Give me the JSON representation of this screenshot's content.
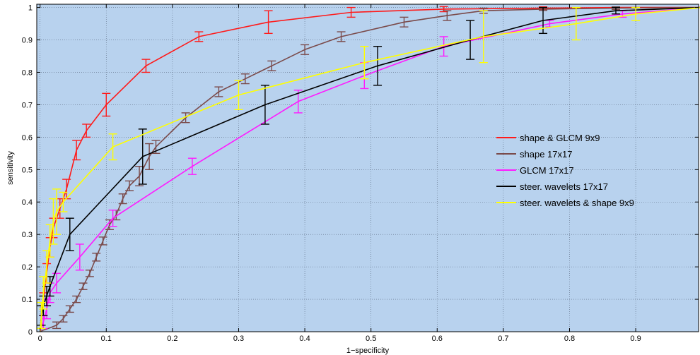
{
  "chart_data": {
    "type": "line",
    "title": "",
    "xlabel": "1−specificity",
    "ylabel": "sensitivity",
    "xlim": [
      -0.005,
      0.995
    ],
    "ylim": [
      0,
      1.01
    ],
    "x_ticks": [
      0,
      0.1,
      0.2,
      0.3,
      0.4,
      0.5,
      0.6,
      0.7,
      0.8,
      0.9
    ],
    "x_tick_labels": [
      "0",
      "0.1",
      "0.2",
      "0.3",
      "0.4",
      "0.5",
      "0.6",
      "0.7",
      "0.8",
      "0.9"
    ],
    "y_ticks": [
      0,
      0.1,
      0.2,
      0.3,
      0.4,
      0.5,
      0.6,
      0.7,
      0.8,
      0.9,
      1
    ],
    "y_tick_labels": [
      "0",
      "0.1",
      "0.2",
      "0.3",
      "0.4",
      "0.5",
      "0.6",
      "0.7",
      "0.8",
      "0.9",
      "1"
    ],
    "grid": true,
    "background_color": "#b8d2ee",
    "legend_position": "center-right",
    "series": [
      {
        "name": "shape & GLCM 9x9",
        "color": "#ff1a1a",
        "x": [
          0,
          0.005,
          0.01,
          0.015,
          0.02,
          0.03,
          0.04,
          0.055,
          0.07,
          0.1,
          0.16,
          0.24,
          0.345,
          0.47,
          0.61,
          0.76,
          0.88,
          1.0
        ],
        "y": [
          0,
          0.1,
          0.18,
          0.26,
          0.32,
          0.38,
          0.44,
          0.56,
          0.62,
          0.7,
          0.82,
          0.91,
          0.955,
          0.985,
          0.995,
          0.998,
          1.0,
          1.0
        ],
        "err": [
          0,
          0.02,
          0.03,
          0.03,
          0.03,
          0.03,
          0.03,
          0.03,
          0.02,
          0.035,
          0.02,
          0.015,
          0.035,
          0.015,
          0.008,
          0.004,
          0,
          0
        ]
      },
      {
        "name": "shape 17x17",
        "color": "#7a4a4a",
        "x": [
          0,
          0.005,
          0.015,
          0.025,
          0.035,
          0.045,
          0.055,
          0.065,
          0.075,
          0.085,
          0.095,
          0.105,
          0.115,
          0.125,
          0.135,
          0.15,
          0.165,
          0.175,
          0.22,
          0.27,
          0.31,
          0.35,
          0.4,
          0.455,
          0.55,
          0.615,
          0.67,
          0.76,
          0.87,
          1.0
        ],
        "y": [
          0,
          0.005,
          0.012,
          0.02,
          0.04,
          0.07,
          0.1,
          0.14,
          0.18,
          0.23,
          0.28,
          0.33,
          0.36,
          0.41,
          0.45,
          0.48,
          0.54,
          0.57,
          0.66,
          0.74,
          0.78,
          0.82,
          0.87,
          0.91,
          0.955,
          0.975,
          0.99,
          0.995,
          0.998,
          1.0
        ],
        "err": [
          0,
          0,
          0,
          0.01,
          0.01,
          0.01,
          0.01,
          0.01,
          0.01,
          0.012,
          0.012,
          0.015,
          0.015,
          0.015,
          0.015,
          0.03,
          0.04,
          0.02,
          0.015,
          0.015,
          0.015,
          0.015,
          0.015,
          0.015,
          0.015,
          0.015,
          0.008,
          0.004,
          0.004,
          0
        ]
      },
      {
        "name": "GLCM 17x17",
        "color": "#ff1aff",
        "x": [
          0,
          0.005,
          0.01,
          0.015,
          0.025,
          0.06,
          0.11,
          0.23,
          0.39,
          0.49,
          0.61,
          0.77,
          0.88,
          1.0
        ],
        "y": [
          0,
          0.03,
          0.07,
          0.12,
          0.15,
          0.23,
          0.35,
          0.51,
          0.71,
          0.79,
          0.88,
          0.95,
          0.98,
          1.0
        ],
        "err": [
          0,
          0.02,
          0.03,
          0.03,
          0.03,
          0.04,
          0.025,
          0.025,
          0.035,
          0.04,
          0.03,
          0.01,
          0.01,
          0
        ]
      },
      {
        "name": "steer. wavelets 17x17",
        "color": "#000000",
        "x": [
          0,
          0.002,
          0.005,
          0.01,
          0.015,
          0.045,
          0.155,
          0.34,
          0.51,
          0.65,
          0.76,
          0.87,
          1.0
        ],
        "y": [
          0,
          0.05,
          0.08,
          0.11,
          0.14,
          0.3,
          0.54,
          0.7,
          0.82,
          0.9,
          0.96,
          0.99,
          1.0
        ],
        "err": [
          0,
          0.03,
          0.03,
          0.03,
          0.03,
          0.05,
          0.085,
          0.06,
          0.06,
          0.06,
          0.04,
          0.01,
          0
        ]
      },
      {
        "name": "steer. wavelets & shape 9x9",
        "color": "#ffff00",
        "x": [
          0,
          0.002,
          0.005,
          0.01,
          0.015,
          0.02,
          0.025,
          0.035,
          0.11,
          0.3,
          0.49,
          0.67,
          0.81,
          0.9,
          1.0
        ],
        "y": [
          0,
          0.05,
          0.12,
          0.2,
          0.28,
          0.34,
          0.37,
          0.4,
          0.57,
          0.73,
          0.83,
          0.91,
          0.95,
          0.98,
          1.0
        ],
        "err": [
          0,
          0.04,
          0.05,
          0.05,
          0.05,
          0.07,
          0.07,
          0.03,
          0.04,
          0.045,
          0.05,
          0.08,
          0.05,
          0.02,
          0
        ]
      }
    ]
  }
}
